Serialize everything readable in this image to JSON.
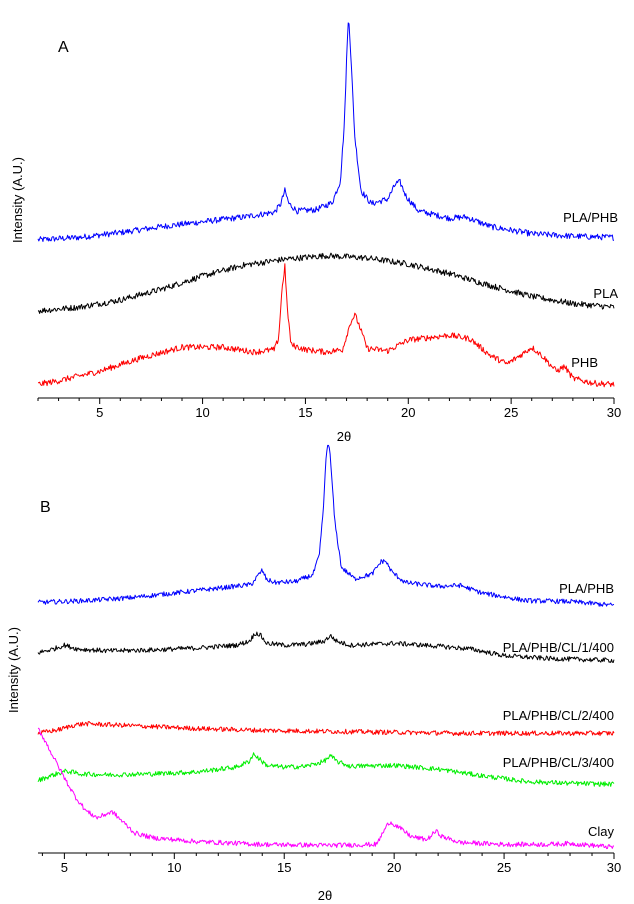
{
  "chart_data": [
    {
      "type": "line",
      "panel": "A",
      "xlabel": "2θ",
      "ylabel": "Intensity (A.U.)",
      "xlim": [
        2,
        30
      ],
      "xticks": [
        5,
        10,
        15,
        20,
        25,
        30
      ],
      "series": [
        {
          "name": "PLA/PHB",
          "color": "#0000ff",
          "points": [
            [
              2,
              0.06
            ],
            [
              4,
              0.08
            ],
            [
              6,
              0.12
            ],
            [
              8,
              0.17
            ],
            [
              10,
              0.21
            ],
            [
              12,
              0.25
            ],
            [
              13.5,
              0.29
            ],
            [
              13.8,
              0.36
            ],
            [
              14.0,
              0.47
            ],
            [
              14.2,
              0.36
            ],
            [
              14.6,
              0.3
            ],
            [
              15.5,
              0.31
            ],
            [
              16.3,
              0.37
            ],
            [
              16.7,
              0.55
            ],
            [
              16.9,
              1.05
            ],
            [
              17.0,
              1.56
            ],
            [
              17.1,
              1.95
            ],
            [
              17.2,
              1.62
            ],
            [
              17.4,
              0.92
            ],
            [
              17.7,
              0.47
            ],
            [
              18.2,
              0.36
            ],
            [
              19.0,
              0.4
            ],
            [
              19.4,
              0.53
            ],
            [
              19.6,
              0.54
            ],
            [
              19.9,
              0.42
            ],
            [
              20.5,
              0.3
            ],
            [
              22.0,
              0.24
            ],
            [
              22.8,
              0.25
            ],
            [
              24,
              0.17
            ],
            [
              26,
              0.11
            ],
            [
              28,
              0.09
            ],
            [
              30,
              0.08
            ]
          ]
        },
        {
          "name": "PLA",
          "color": "#000000",
          "points": [
            [
              2,
              0.06
            ],
            [
              4,
              0.09
            ],
            [
              6,
              0.15
            ],
            [
              8,
              0.24
            ],
            [
              10,
              0.35
            ],
            [
              12,
              0.44
            ],
            [
              14,
              0.49
            ],
            [
              16,
              0.52
            ],
            [
              18,
              0.5
            ],
            [
              20,
              0.45
            ],
            [
              22,
              0.37
            ],
            [
              24,
              0.27
            ],
            [
              26,
              0.18
            ],
            [
              28,
              0.12
            ],
            [
              30,
              0.09
            ]
          ]
        },
        {
          "name": "PHB",
          "color": "#ff0000",
          "points": [
            [
              2,
              0.03
            ],
            [
              3,
              0.06
            ],
            [
              5,
              0.14
            ],
            [
              7,
              0.25
            ],
            [
              9,
              0.34
            ],
            [
              11,
              0.34
            ],
            [
              12.5,
              0.3
            ],
            [
              13.5,
              0.32
            ],
            [
              13.7,
              0.42
            ],
            [
              13.85,
              0.8
            ],
            [
              14.0,
              1.02
            ],
            [
              14.1,
              0.7
            ],
            [
              14.3,
              0.36
            ],
            [
              15.0,
              0.32
            ],
            [
              16,
              0.3
            ],
            [
              16.8,
              0.32
            ],
            [
              17.2,
              0.55
            ],
            [
              17.4,
              0.61
            ],
            [
              17.6,
              0.53
            ],
            [
              18,
              0.33
            ],
            [
              19,
              0.31
            ],
            [
              20,
              0.4
            ],
            [
              21,
              0.42
            ],
            [
              22,
              0.44
            ],
            [
              23,
              0.41
            ],
            [
              24,
              0.27
            ],
            [
              24.8,
              0.2
            ],
            [
              25.6,
              0.29
            ],
            [
              26.0,
              0.34
            ],
            [
              26.5,
              0.27
            ],
            [
              27.2,
              0.14
            ],
            [
              27.6,
              0.18
            ],
            [
              28,
              0.08
            ],
            [
              29,
              0.04
            ],
            [
              30,
              0.03
            ]
          ]
        }
      ]
    },
    {
      "type": "line",
      "panel": "B",
      "xlabel": "2θ",
      "ylabel": "Intensity (A.U.)",
      "xlim": [
        3.8,
        30
      ],
      "xticks": [
        5,
        10,
        15,
        20,
        25,
        30
      ],
      "series": [
        {
          "name": "PLA/PHB",
          "color": "#0000ff",
          "points": [
            [
              3.8,
              0.1
            ],
            [
              6,
              0.12
            ],
            [
              8,
              0.15
            ],
            [
              10,
              0.2
            ],
            [
              12,
              0.25
            ],
            [
              13.5,
              0.29
            ],
            [
              13.8,
              0.38
            ],
            [
              14.0,
              0.44
            ],
            [
              14.2,
              0.34
            ],
            [
              14.6,
              0.31
            ],
            [
              15.5,
              0.32
            ],
            [
              16.3,
              0.39
            ],
            [
              16.6,
              0.6
            ],
            [
              16.8,
              1.15
            ],
            [
              16.9,
              1.62
            ],
            [
              17.0,
              1.8
            ],
            [
              17.1,
              1.62
            ],
            [
              17.3,
              0.95
            ],
            [
              17.6,
              0.47
            ],
            [
              18.2,
              0.35
            ],
            [
              19.0,
              0.4
            ],
            [
              19.4,
              0.53
            ],
            [
              19.6,
              0.54
            ],
            [
              19.9,
              0.42
            ],
            [
              20.5,
              0.31
            ],
            [
              22,
              0.27
            ],
            [
              23,
              0.28
            ],
            [
              24,
              0.2
            ],
            [
              26,
              0.12
            ],
            [
              28,
              0.11
            ],
            [
              30,
              0.07
            ]
          ]
        },
        {
          "name": "PLA/PHB/CL/1/400",
          "color": "#000000",
          "points": [
            [
              3.8,
              0.16
            ],
            [
              4.5,
              0.2
            ],
            [
              5.0,
              0.24
            ],
            [
              5.6,
              0.2
            ],
            [
              7,
              0.18
            ],
            [
              9,
              0.19
            ],
            [
              11,
              0.21
            ],
            [
              12.8,
              0.24
            ],
            [
              13.4,
              0.28
            ],
            [
              13.7,
              0.37
            ],
            [
              13.9,
              0.35
            ],
            [
              14.2,
              0.26
            ],
            [
              15,
              0.24
            ],
            [
              16,
              0.25
            ],
            [
              16.8,
              0.28
            ],
            [
              17.1,
              0.34
            ],
            [
              17.4,
              0.28
            ],
            [
              18,
              0.24
            ],
            [
              20,
              0.26
            ],
            [
              22,
              0.23
            ],
            [
              23.5,
              0.2
            ],
            [
              25,
              0.13
            ],
            [
              27,
              0.1
            ],
            [
              28.5,
              0.09
            ],
            [
              30,
              0.08
            ]
          ]
        },
        {
          "name": "PLA/PHB/CL/2/400",
          "color": "#ff0000",
          "points": [
            [
              3.8,
              0.05
            ],
            [
              4.8,
              0.09
            ],
            [
              5.5,
              0.14
            ],
            [
              6,
              0.15
            ],
            [
              7,
              0.14
            ],
            [
              9,
              0.12
            ],
            [
              11,
              0.1
            ],
            [
              14,
              0.08
            ],
            [
              17,
              0.07
            ],
            [
              20,
              0.06
            ],
            [
              23,
              0.05
            ],
            [
              26,
              0.05
            ],
            [
              30,
              0.05
            ]
          ]
        },
        {
          "name": "PLA/PHB/CL/3/400",
          "color": "#00ee00",
          "points": [
            [
              3.8,
              0.1
            ],
            [
              4.5,
              0.16
            ],
            [
              5.1,
              0.2
            ],
            [
              5.7,
              0.17
            ],
            [
              7,
              0.16
            ],
            [
              9,
              0.17
            ],
            [
              11,
              0.19
            ],
            [
              12.8,
              0.24
            ],
            [
              13.4,
              0.3
            ],
            [
              13.6,
              0.38
            ],
            [
              13.8,
              0.34
            ],
            [
              14.2,
              0.26
            ],
            [
              15,
              0.24
            ],
            [
              16,
              0.25
            ],
            [
              16.8,
              0.3
            ],
            [
              17.1,
              0.36
            ],
            [
              17.4,
              0.3
            ],
            [
              18,
              0.25
            ],
            [
              20,
              0.26
            ],
            [
              22,
              0.22
            ],
            [
              24,
              0.15
            ],
            [
              26,
              0.09
            ],
            [
              28,
              0.07
            ],
            [
              30,
              0.06
            ]
          ]
        },
        {
          "name": "Clay",
          "color": "#ff00ff",
          "points": [
            [
              3.8,
              1.3
            ],
            [
              4.1,
              1.18
            ],
            [
              4.5,
              1.0
            ],
            [
              5.0,
              0.78
            ],
            [
              5.5,
              0.58
            ],
            [
              6.0,
              0.43
            ],
            [
              6.5,
              0.36
            ],
            [
              7.0,
              0.41
            ],
            [
              7.2,
              0.42
            ],
            [
              7.6,
              0.33
            ],
            [
              8.2,
              0.2
            ],
            [
              9,
              0.15
            ],
            [
              11,
              0.11
            ],
            [
              14,
              0.08
            ],
            [
              17,
              0.07
            ],
            [
              19.2,
              0.08
            ],
            [
              19.6,
              0.25
            ],
            [
              19.8,
              0.32
            ],
            [
              20.2,
              0.26
            ],
            [
              20.8,
              0.16
            ],
            [
              21.5,
              0.13
            ],
            [
              21.9,
              0.22
            ],
            [
              22.2,
              0.16
            ],
            [
              23,
              0.1
            ],
            [
              25,
              0.08
            ],
            [
              27,
              0.08
            ],
            [
              28,
              0.09
            ],
            [
              30,
              0.05
            ]
          ]
        }
      ]
    }
  ],
  "panels": {
    "A": {
      "label": "A",
      "series_labels": [
        "PLA/PHB",
        "PLA",
        "PHB"
      ]
    },
    "B": {
      "label": "B",
      "series_labels": [
        "PLA/PHB",
        "PLA/PHB/CL/1/400",
        "PLA/PHB/CL/2/400",
        "PLA/PHB/CL/3/400",
        "Clay"
      ]
    }
  }
}
